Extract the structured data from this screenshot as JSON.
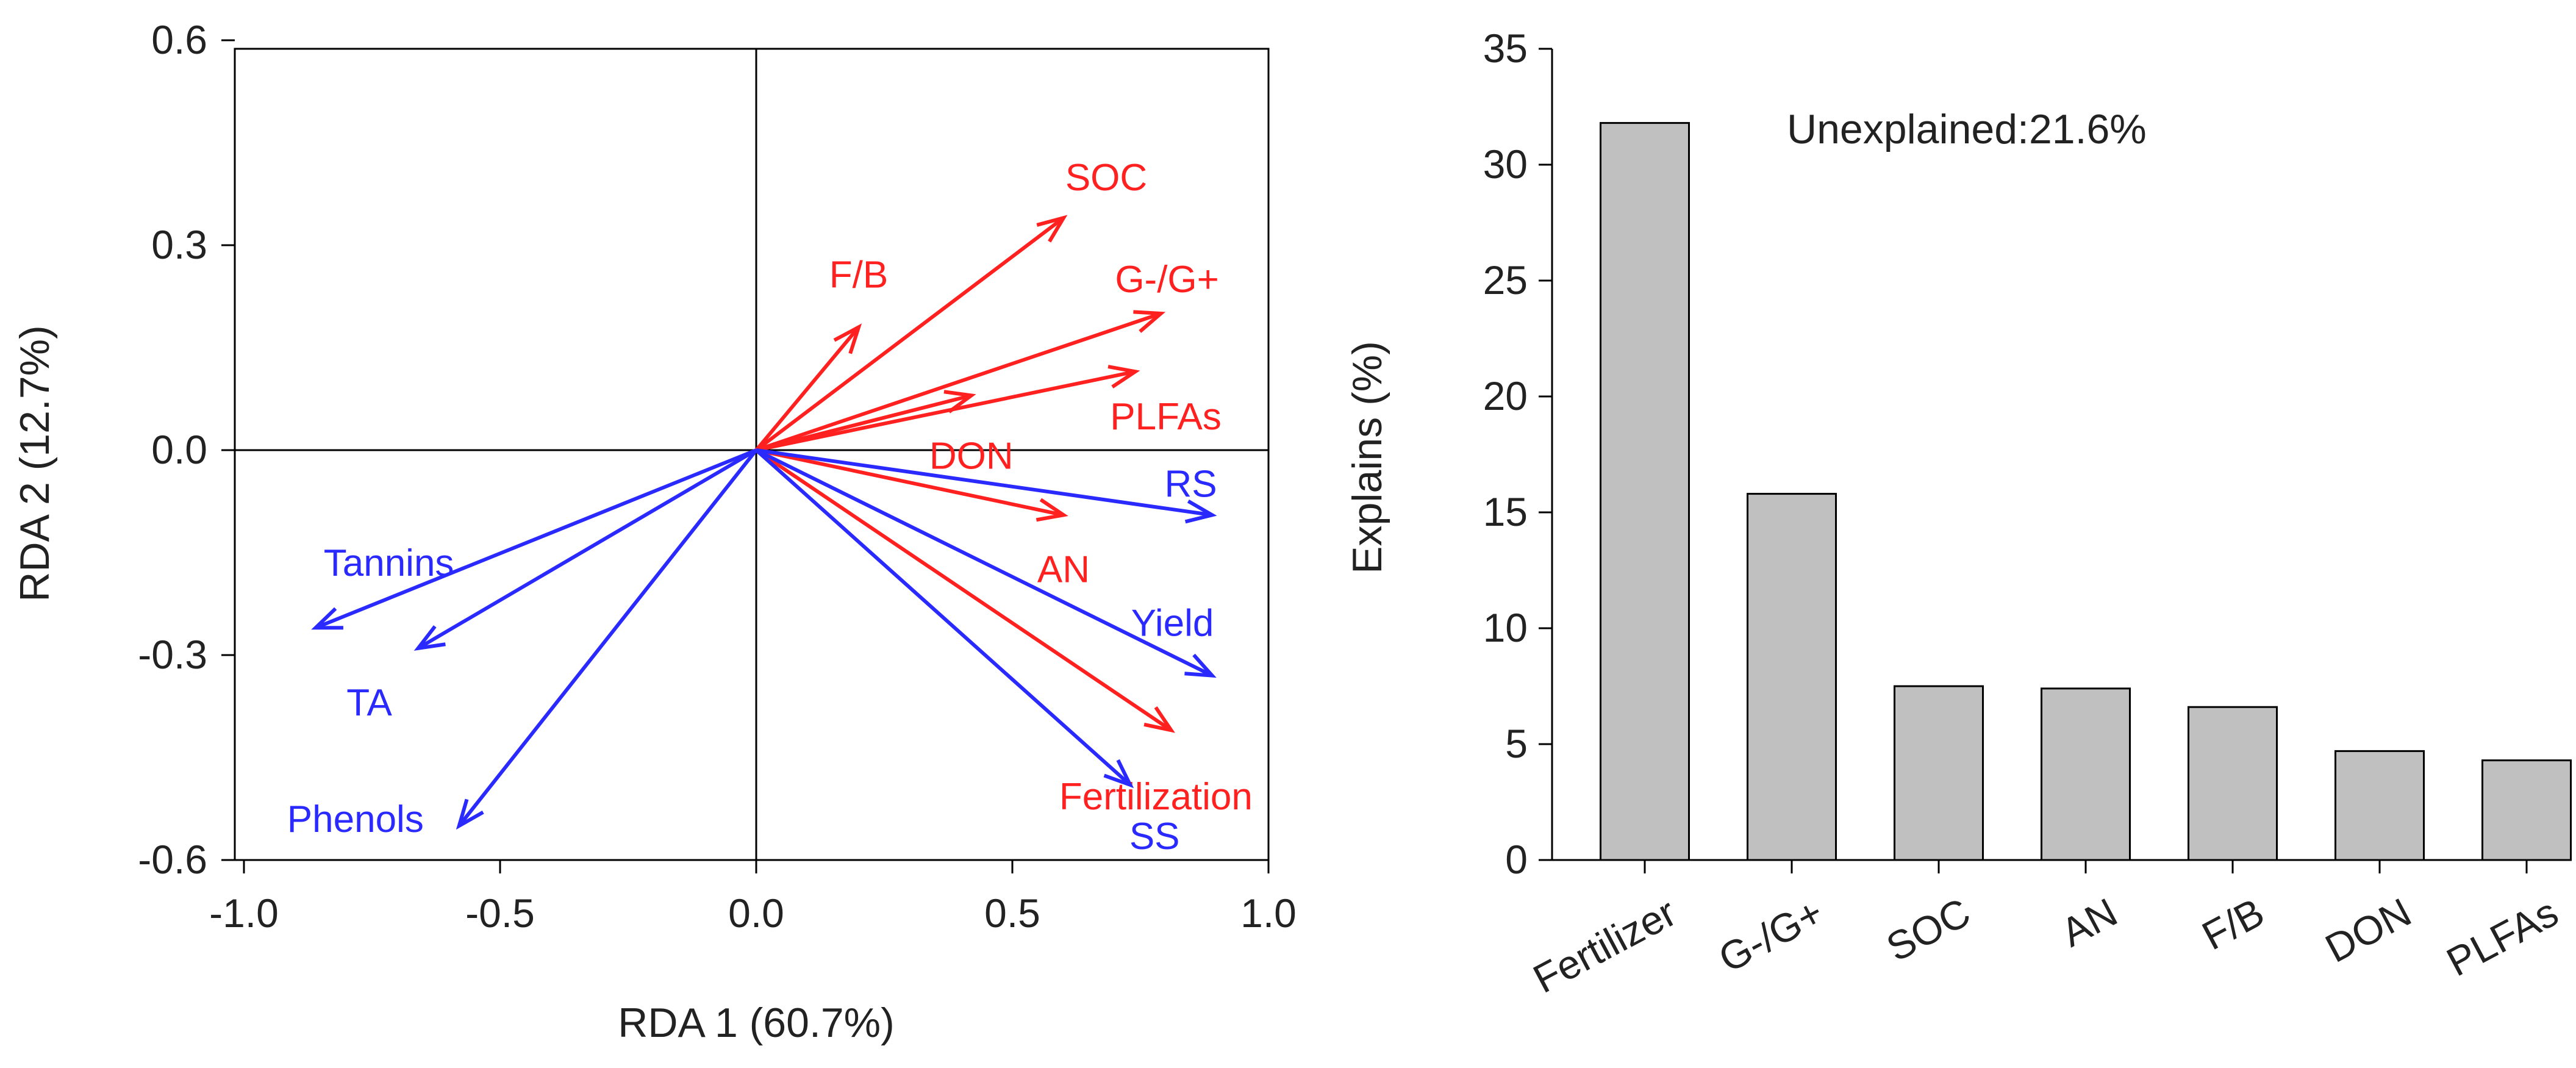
{
  "colors": {
    "response": "#ff2020",
    "explanatory": "#2a2aff",
    "bar_fill": "#c0c0c0",
    "axis": "#000000",
    "text": "#222222"
  },
  "chart_data": [
    {
      "type": "biplot",
      "title": "",
      "xlabel": "RDA 1 (60.7%)",
      "ylabel": "RDA 2 (12.7%)",
      "xlim": [
        -1.0,
        1.0
      ],
      "ylim": [
        -0.6,
        0.6
      ],
      "xticks": [
        "-1.0",
        "-0.5",
        "0.0",
        "0.5",
        "1.0"
      ],
      "xtick_values": [
        -1.0,
        -0.5,
        0.0,
        0.5,
        1.0
      ],
      "yticks": [
        "0.6",
        "0.3",
        "0.0",
        "-0.3",
        "-0.6"
      ],
      "ytick_values": [
        0.6,
        0.3,
        0.0,
        -0.3,
        -0.6
      ],
      "series": [
        {
          "name": "response",
          "color": "#ff2020",
          "arrows": [
            {
              "label": "SOC",
              "x": 0.6,
              "y": 0.34
            },
            {
              "label": "F/B",
              "x": 0.2,
              "y": 0.18
            },
            {
              "label": "G-/G+",
              "x": 0.79,
              "y": 0.2
            },
            {
              "label": "PLFAs",
              "x": 0.74,
              "y": 0.115
            },
            {
              "label": "DON",
              "x": 0.42,
              "y": 0.08
            },
            {
              "label": "AN",
              "x": 0.6,
              "y": -0.095
            },
            {
              "label": "Fertilization",
              "x": 0.81,
              "y": -0.41
            }
          ]
        },
        {
          "name": "explanatory",
          "color": "#2a2aff",
          "arrows": [
            {
              "label": "RS",
              "x": 0.89,
              "y": -0.095
            },
            {
              "label": "Yield",
              "x": 0.89,
              "y": -0.33
            },
            {
              "label": "SS",
              "x": 0.73,
              "y": -0.49
            },
            {
              "label": "Tannins",
              "x": -0.86,
              "y": -0.26
            },
            {
              "label": "TA",
              "x": -0.66,
              "y": -0.29
            },
            {
              "label": "Phenols",
              "x": -0.58,
              "y": -0.55
            }
          ]
        }
      ]
    },
    {
      "type": "bar",
      "title": "",
      "xlabel": "",
      "ylabel": "Explains (%)",
      "annotation": "Unexplained:21.6%",
      "ylim": [
        0,
        35
      ],
      "yticks": [
        0,
        5,
        10,
        15,
        20,
        25,
        30,
        35
      ],
      "categories": [
        "Fertilizer",
        "G-/G+",
        "SOC",
        "AN",
        "F/B",
        "DON",
        "PLFAs"
      ],
      "values": [
        31.8,
        15.8,
        7.5,
        7.4,
        6.6,
        4.7,
        4.3
      ]
    }
  ]
}
